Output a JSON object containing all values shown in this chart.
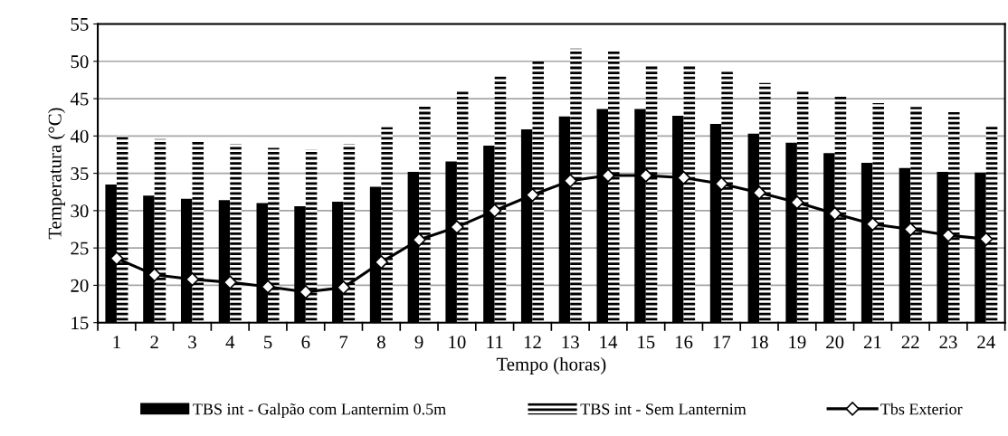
{
  "chart_data": {
    "type": "bar",
    "xlabel": "Tempo (horas)",
    "ylabel": "Temperatura (°C)",
    "categories": [
      "1",
      "2",
      "3",
      "4",
      "5",
      "6",
      "7",
      "8",
      "9",
      "10",
      "11",
      "12",
      "13",
      "14",
      "15",
      "16",
      "17",
      "18",
      "19",
      "20",
      "21",
      "22",
      "23",
      "24"
    ],
    "series": [
      {
        "name": "TBS int - Galpão com Lanternim 0.5m",
        "color": "#000000",
        "values": [
          33.5,
          32,
          31.6,
          31.4,
          31,
          30.6,
          31.2,
          33.2,
          35.2,
          36.6,
          38.7,
          40.9,
          42.6,
          43.6,
          43.6,
          42.7,
          41.6,
          40.3,
          39.1,
          37.7,
          36.4,
          35.7,
          35.2,
          35.1
        ]
      },
      {
        "name": "TBS int - Sem Lanternim",
        "color": "#000000",
        "values": [
          40,
          39.6,
          39.3,
          38.9,
          38.4,
          38.2,
          38.9,
          41.2,
          44,
          46,
          48,
          50,
          51.7,
          51.4,
          49.6,
          49.6,
          48.6,
          47.1,
          46.1,
          45.3,
          44.4,
          43.9,
          43.2,
          41.5
        ]
      },
      {
        "name": "Tbs Exterior",
        "type": "line",
        "color": "#000000",
        "marker": "diamond",
        "values": [
          23.6,
          21.4,
          20.8,
          20.4,
          19.8,
          19.1,
          19.7,
          23.1,
          26.1,
          27.8,
          30,
          32.1,
          34,
          34.7,
          34.7,
          34.4,
          33.6,
          32.4,
          31.1,
          29.6,
          28.2,
          27.5,
          26.7,
          26.2
        ]
      }
    ],
    "ylim": [
      15,
      55
    ],
    "yticks": [
      15,
      20,
      25,
      30,
      35,
      40,
      45,
      50,
      55
    ],
    "grid": "y",
    "legend": "bottom"
  }
}
